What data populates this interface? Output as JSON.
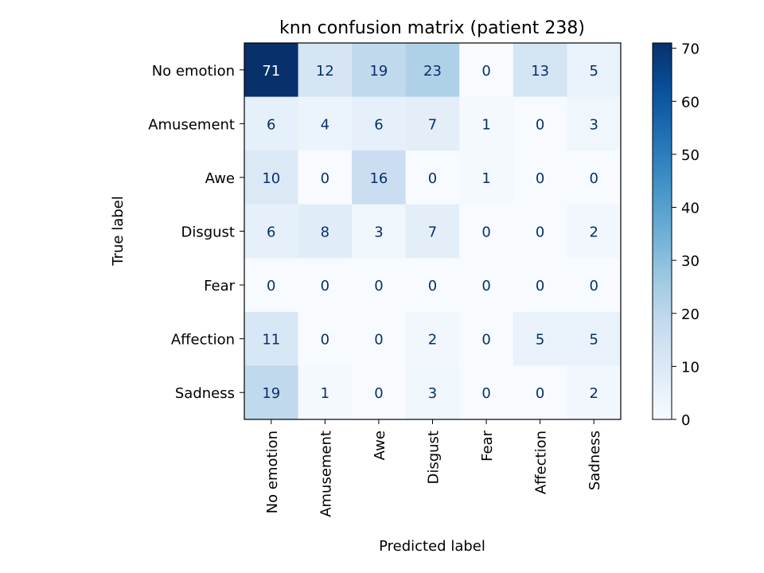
{
  "chart_data": {
    "type": "heatmap",
    "title": "knn confusion matrix (patient 238)",
    "xlabel": "Predicted label",
    "ylabel": "True label",
    "x_categories": [
      "No emotion",
      "Amusement",
      "Awe",
      "Disgust",
      "Fear",
      "Affection",
      "Sadness"
    ],
    "y_categories": [
      "No emotion",
      "Amusement",
      "Awe",
      "Disgust",
      "Fear",
      "Affection",
      "Sadness"
    ],
    "values": [
      [
        71,
        12,
        19,
        23,
        0,
        13,
        5
      ],
      [
        6,
        4,
        6,
        7,
        1,
        0,
        3
      ],
      [
        10,
        0,
        16,
        0,
        1,
        0,
        0
      ],
      [
        6,
        8,
        3,
        7,
        0,
        0,
        2
      ],
      [
        0,
        0,
        0,
        0,
        0,
        0,
        0
      ],
      [
        11,
        0,
        0,
        2,
        0,
        5,
        5
      ],
      [
        19,
        1,
        0,
        3,
        0,
        0,
        2
      ]
    ],
    "colormap": "Blues",
    "vmin": 0,
    "vmax": 71,
    "colorbar_ticks": [
      0,
      10,
      20,
      30,
      40,
      50,
      60,
      70
    ]
  }
}
